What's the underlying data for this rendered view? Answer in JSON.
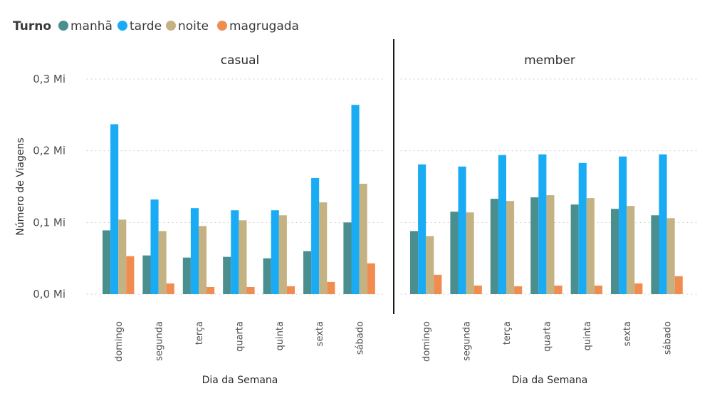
{
  "legend": {
    "title": "Turno",
    "items": [
      {
        "label": "manhã",
        "color": "#4A8E8E"
      },
      {
        "label": "tarde",
        "color": "#1AABF5"
      },
      {
        "label": "noite",
        "color": "#C4B282"
      },
      {
        "label": "magrugada",
        "color": "#F08C50"
      }
    ]
  },
  "chart_data": {
    "type": "bar",
    "ylabel": "Número de Viagens",
    "xlabel": "Dia da Semana",
    "ylim": [
      0,
      0.3
    ],
    "yticks": [
      {
        "value": 0,
        "label": "0,0 Mi"
      },
      {
        "value": 0.1,
        "label": "0,1 Mi"
      },
      {
        "value": 0.2,
        "label": "0,2 Mi"
      },
      {
        "value": 0.3,
        "label": "0,3 Mi"
      }
    ],
    "grid": true,
    "legend_position": "top-left",
    "categories": [
      "domingo",
      "segunda",
      "terça",
      "quarta",
      "quinta",
      "sexta",
      "sábado"
    ],
    "panels": [
      {
        "title": "casual",
        "series": [
          {
            "name": "manhã",
            "values": [
              0.089,
              0.054,
              0.051,
              0.052,
              0.05,
              0.06,
              0.1
            ]
          },
          {
            "name": "tarde",
            "values": [
              0.237,
              0.132,
              0.12,
              0.117,
              0.117,
              0.162,
              0.264
            ]
          },
          {
            "name": "noite",
            "values": [
              0.104,
              0.088,
              0.095,
              0.103,
              0.11,
              0.128,
              0.154
            ]
          },
          {
            "name": "magrugada",
            "values": [
              0.053,
              0.015,
              0.01,
              0.01,
              0.011,
              0.017,
              0.043
            ]
          }
        ]
      },
      {
        "title": "member",
        "series": [
          {
            "name": "manhã",
            "values": [
              0.088,
              0.115,
              0.133,
              0.135,
              0.125,
              0.119,
              0.11
            ]
          },
          {
            "name": "tarde",
            "values": [
              0.181,
              0.178,
              0.194,
              0.195,
              0.183,
              0.192,
              0.195
            ]
          },
          {
            "name": "noite",
            "values": [
              0.081,
              0.114,
              0.13,
              0.138,
              0.134,
              0.123,
              0.106
            ]
          },
          {
            "name": "magrugada",
            "values": [
              0.027,
              0.012,
              0.011,
              0.012,
              0.012,
              0.015,
              0.025
            ]
          }
        ]
      }
    ]
  }
}
